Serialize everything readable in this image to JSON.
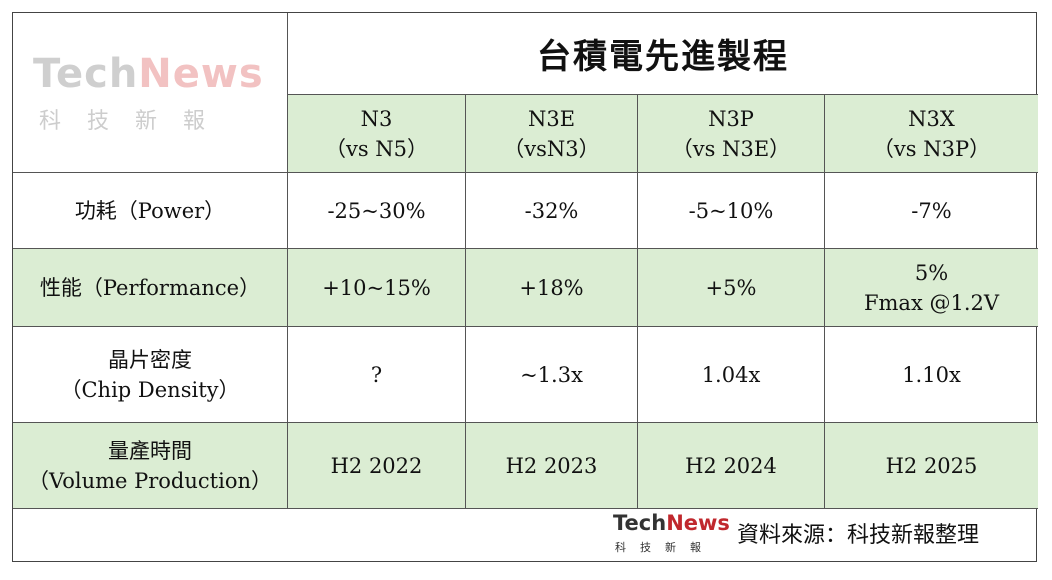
{
  "logo": {
    "tech": "Tech",
    "news": "News",
    "sub": "科技新報"
  },
  "chart_data": {
    "type": "table",
    "title": "台積電先進製程",
    "columns": [
      {
        "line1": "N3",
        "line2": "（vs N5）"
      },
      {
        "line1": "N3E",
        "line2": "（vsN3）"
      },
      {
        "line1": "N3P",
        "line2": "（vs N3E）"
      },
      {
        "line1": "N3X",
        "line2": "（vs N3P）"
      }
    ],
    "rows": [
      {
        "label1": "功耗（Power）",
        "label2": "",
        "values": [
          "-25~30%",
          "-32%",
          "-5~10%",
          "-7%"
        ],
        "extra3": ""
      },
      {
        "label1": "性能（Performance）",
        "label2": "",
        "values": [
          "+10~15%",
          "+18%",
          "+5%",
          "5%"
        ],
        "extra3": "Fmax @1.2V"
      },
      {
        "label1": "晶片密度",
        "label2": "（Chip Density）",
        "values": [
          "?",
          "~1.3x",
          "1.04x",
          "1.10x"
        ],
        "extra3": ""
      },
      {
        "label1": "量產時間",
        "label2": "（Volume Production）",
        "values": [
          "H2 2022",
          "H2 2023",
          "H2 2024",
          "H2 2025"
        ],
        "extra3": ""
      }
    ]
  },
  "footer": {
    "logo_tech": "Tech",
    "logo_news": "News",
    "logo_sub": "科技新報",
    "source": "資料來源：科技新報整理"
  }
}
